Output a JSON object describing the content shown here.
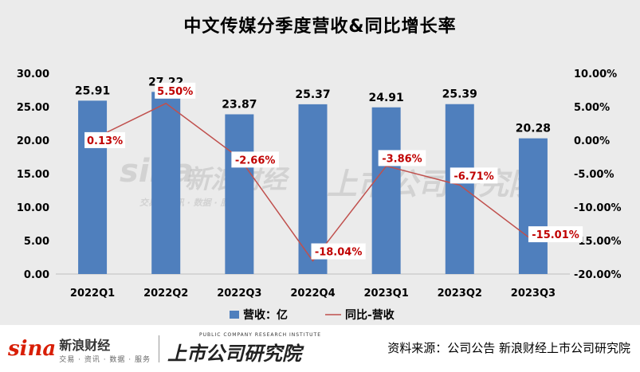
{
  "title": "中文传媒分季度营收&同比增长率",
  "chart_data": {
    "type": "bar",
    "categories": [
      "2022Q1",
      "2022Q2",
      "2022Q3",
      "2022Q4",
      "2023Q1",
      "2023Q2",
      "2023Q3"
    ],
    "series": [
      {
        "name": "营收：亿",
        "type": "bar",
        "axis": "left",
        "color": "#4f7fbd",
        "values": [
          25.91,
          27.22,
          23.87,
          25.37,
          24.91,
          25.39,
          20.28
        ],
        "labels": [
          "25.91",
          "27.22",
          "23.87",
          "25.37",
          "24.91",
          "25.39",
          "20.28"
        ]
      },
      {
        "name": "同比-营收",
        "type": "line",
        "axis": "right",
        "color": "#c0504d",
        "values": [
          0.13,
          5.5,
          -2.66,
          -18.04,
          -3.86,
          -6.71,
          -15.01
        ],
        "labels": [
          "0.13%",
          "5.50%",
          "-2.66%",
          "-18.04%",
          "-3.86%",
          "-6.71%",
          "-15.01%"
        ]
      }
    ],
    "y_left": {
      "range": [
        0,
        30
      ],
      "ticks": [
        "0.00",
        "5.00",
        "10.00",
        "15.00",
        "20.00",
        "25.00",
        "30.00"
      ]
    },
    "y_right": {
      "range": [
        -20,
        10
      ],
      "ticks": [
        "-20.00%",
        "-15.00%",
        "-10.00%",
        "-5.00%",
        "0.00%",
        "5.00%",
        "10.00%"
      ]
    },
    "grid": false,
    "legend": "bottom"
  },
  "watermark": {
    "sina": "sina",
    "xinlang": "新浪财经",
    "sub": "交易 · 资讯 · 数据 · 服务",
    "inst": "上市公司研究院"
  },
  "footer": {
    "brand_sina": "sina",
    "brand_name": "新浪财经",
    "brand_sub": "交易 · 资讯 · 数据 · 服务",
    "brand_inst_en": "PUBLIC COMPANY RESEARCH INSTITUTE",
    "brand_inst_cn": "上市公司研究院",
    "source": "资料来源：公司公告 新浪财经上市公司研究院"
  }
}
